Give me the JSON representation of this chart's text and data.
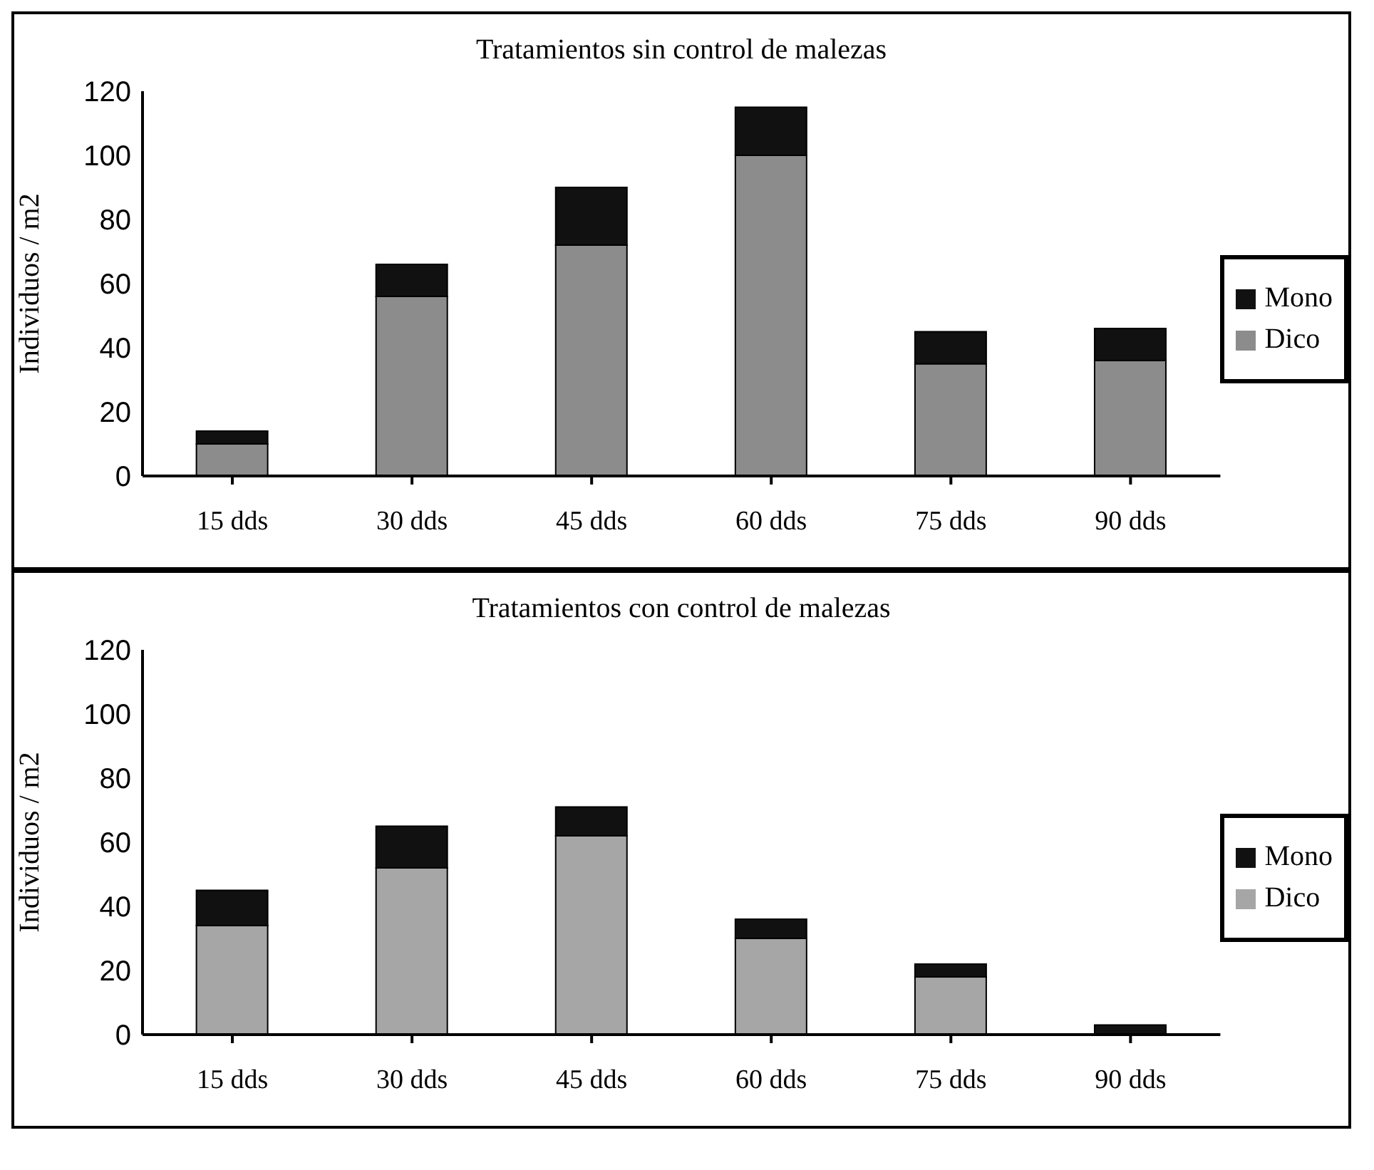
{
  "chart_data": [
    {
      "type": "bar",
      "title": "Tratamientos sin control de malezas",
      "ylabel": "Individuos / m2",
      "categories": [
        "15 dds",
        "30 dds",
        "45 dds",
        "60 dds",
        "75 dds",
        "90 dds"
      ],
      "stacked": true,
      "legend": "right",
      "ylim": [
        0,
        120
      ],
      "yticks": [
        0,
        20,
        40,
        60,
        80,
        100,
        120
      ],
      "series": [
        {
          "name": "Dico",
          "color": "#8c8c8c",
          "values": [
            10,
            56,
            72,
            100,
            35,
            36
          ]
        },
        {
          "name": "Mono",
          "color": "#111111",
          "values": [
            4,
            10,
            18,
            15,
            10,
            10
          ]
        }
      ]
    },
    {
      "type": "bar",
      "title": "Tratamientos con control de malezas",
      "ylabel": "Individuos / m2",
      "categories": [
        "15 dds",
        "30 dds",
        "45 dds",
        "60 dds",
        "75 dds",
        "90 dds"
      ],
      "stacked": true,
      "legend": "right",
      "ylim": [
        0,
        120
      ],
      "yticks": [
        0,
        20,
        40,
        60,
        80,
        100,
        120
      ],
      "series": [
        {
          "name": "Dico",
          "color": "#a6a6a6",
          "values": [
            34,
            52,
            62,
            30,
            18,
            null
          ]
        },
        {
          "name": "Mono",
          "color": "#111111",
          "values": [
            11,
            13,
            9,
            6,
            4,
            3
          ]
        }
      ]
    }
  ]
}
